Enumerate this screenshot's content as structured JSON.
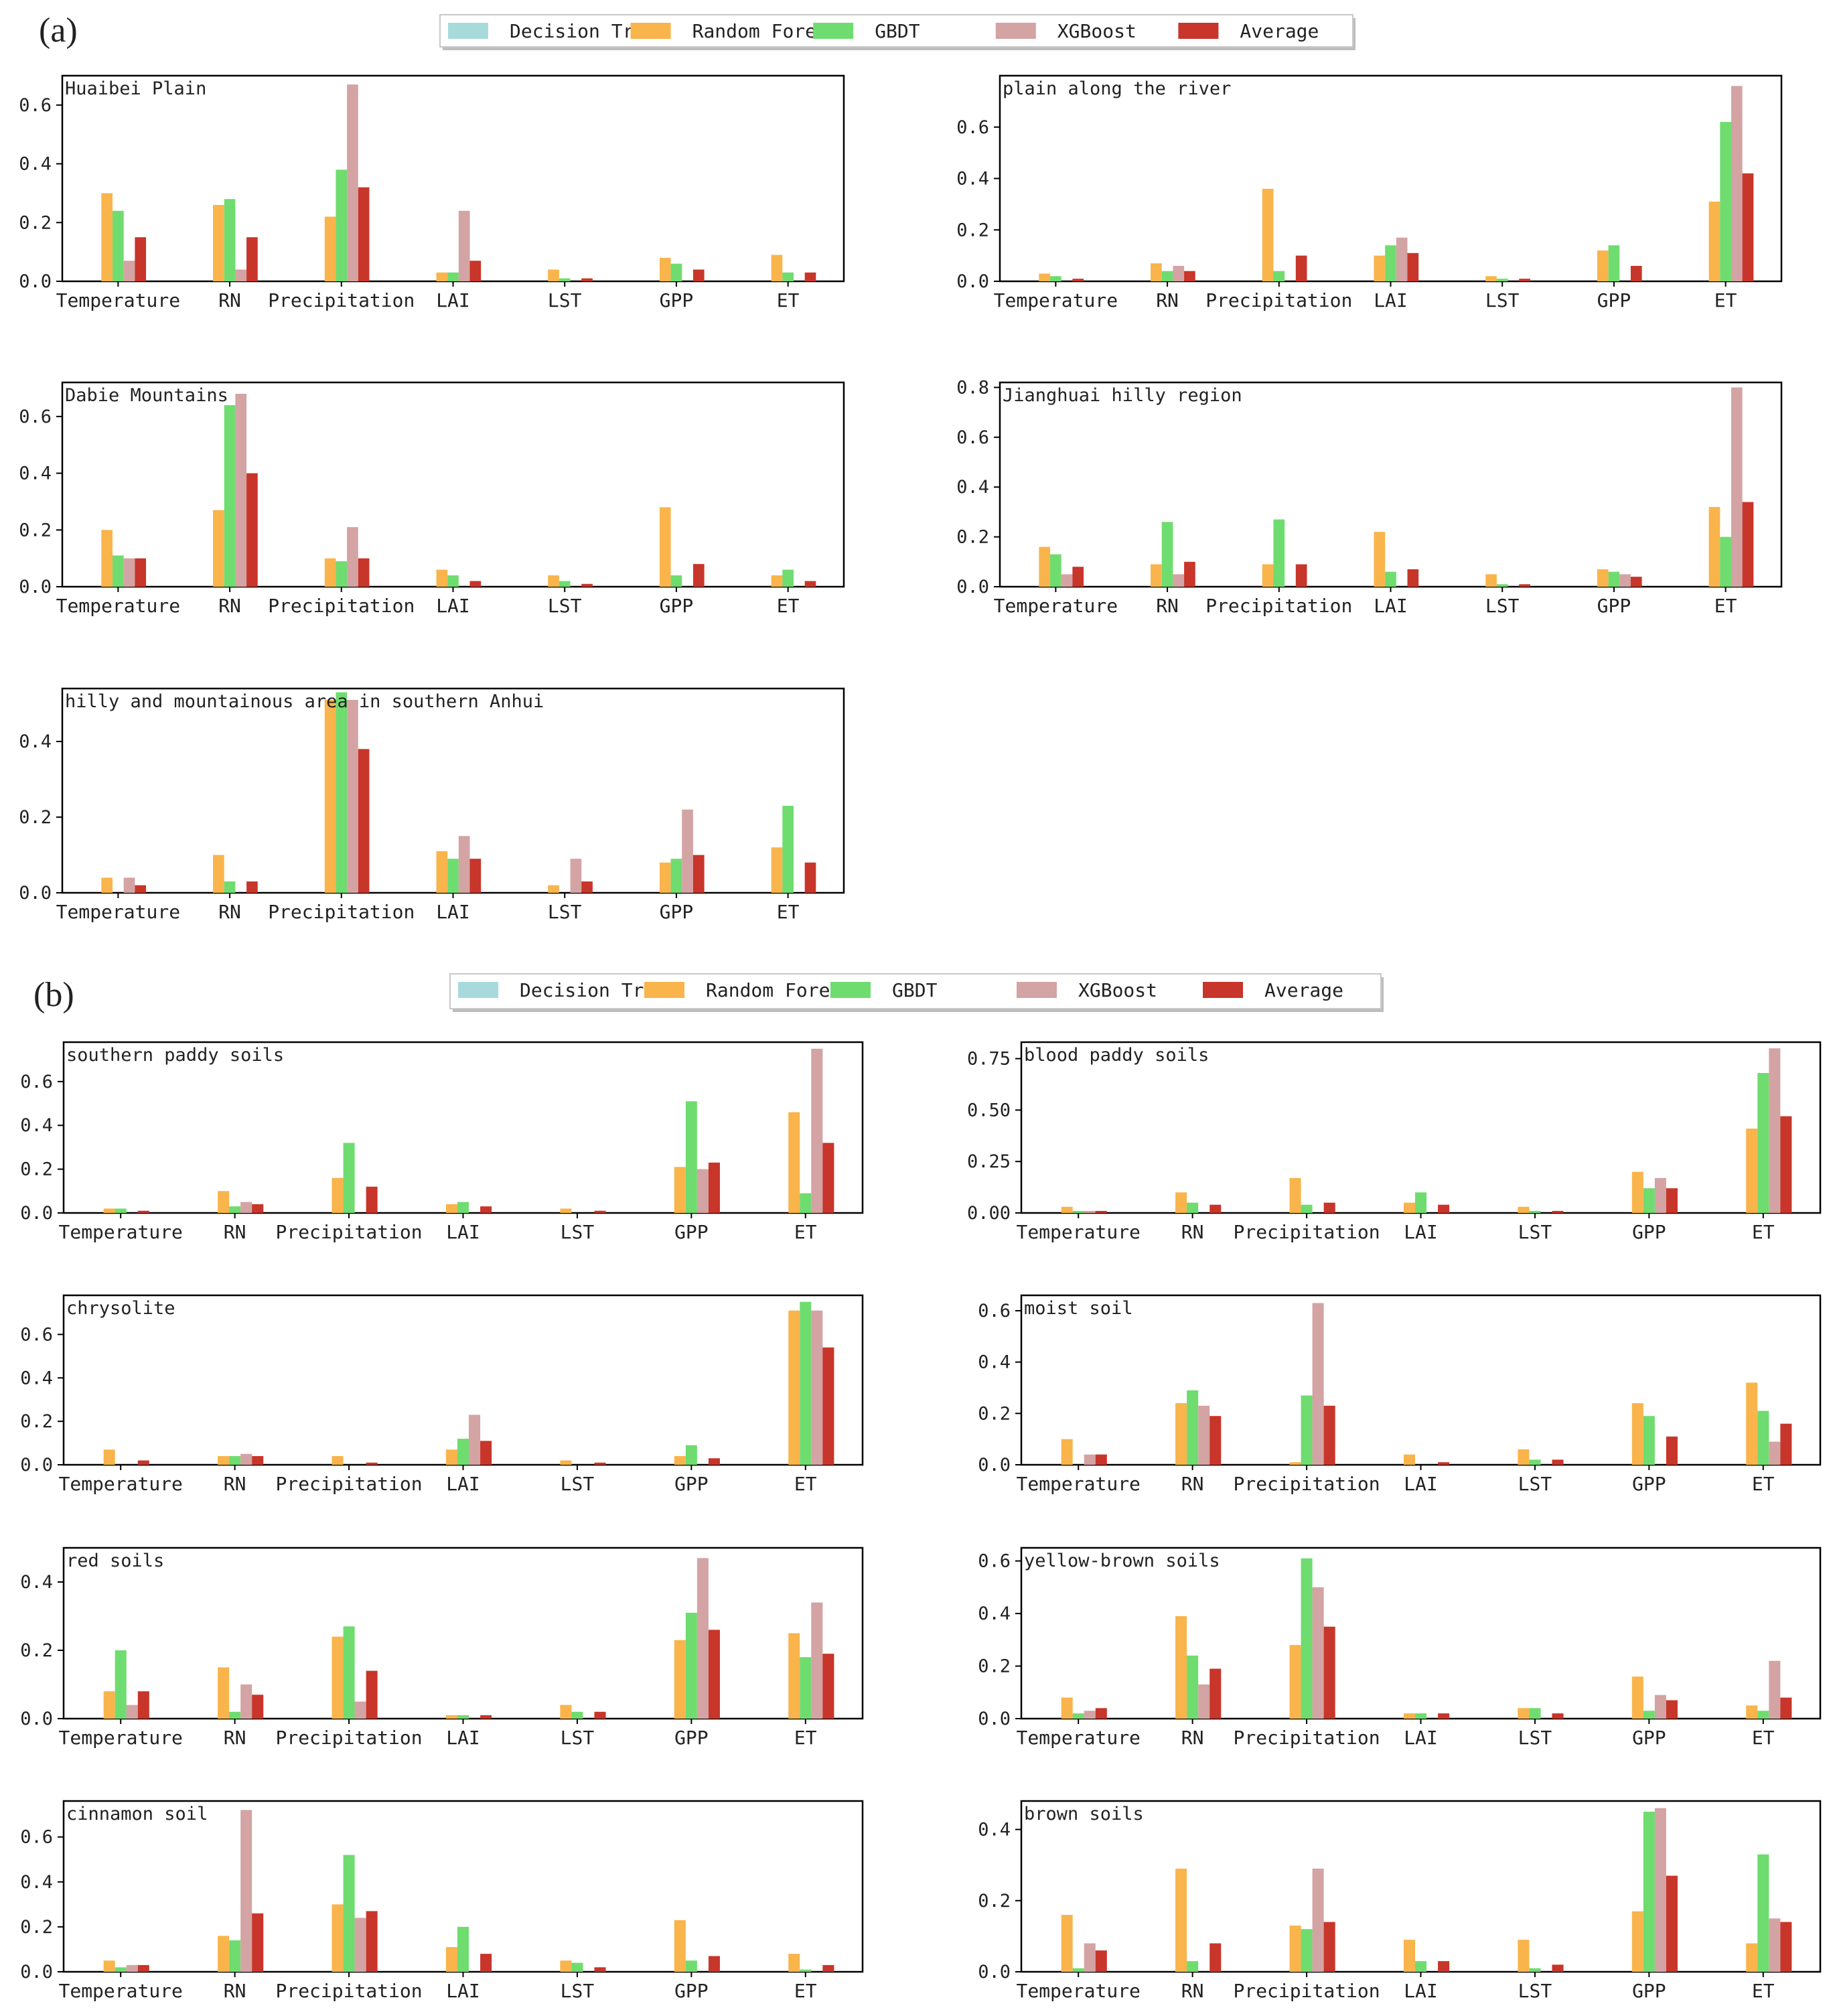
{
  "series_names": [
    "Decision Trees",
    "Random Forest",
    "GBDT",
    "XGBoost",
    "Average"
  ],
  "colors": {
    "decision_trees": "#a8dadc",
    "random_forest": "#f9b44b",
    "gbdt": "#6fdc6f",
    "xgboost": "#d4a3a3",
    "average": "#c8352a"
  },
  "chart_data": [
    {
      "group": "a",
      "type": "bar",
      "title": "Huaibei Plain",
      "categories": [
        "Temperature",
        "RN",
        "Precipitation",
        "LAI",
        "LST",
        "GPP",
        "ET"
      ],
      "yticks": [
        "0.0",
        "0.2",
        "0.4",
        "0.6"
      ],
      "ylim": [
        0,
        0.7
      ],
      "series": [
        {
          "name": "Decision Trees",
          "values": [
            0,
            0,
            0,
            0,
            0,
            0,
            0
          ]
        },
        {
          "name": "Random Forest",
          "values": [
            0.3,
            0.26,
            0.22,
            0.03,
            0.04,
            0.08,
            0.09
          ]
        },
        {
          "name": "GBDT",
          "values": [
            0.24,
            0.28,
            0.38,
            0.03,
            0.01,
            0.06,
            0.03
          ]
        },
        {
          "name": "XGBoost",
          "values": [
            0.07,
            0.04,
            0.67,
            0.24,
            0.0,
            0.0,
            0.0
          ]
        },
        {
          "name": "Average",
          "values": [
            0.15,
            0.15,
            0.32,
            0.07,
            0.01,
            0.04,
            0.03
          ]
        }
      ]
    },
    {
      "group": "a",
      "type": "bar",
      "title": "plain along the river",
      "categories": [
        "Temperature",
        "RN",
        "Precipitation",
        "LAI",
        "LST",
        "GPP",
        "ET"
      ],
      "yticks": [
        "0.0",
        "0.2",
        "0.4",
        "0.6"
      ],
      "ylim": [
        0,
        0.8
      ],
      "series": [
        {
          "name": "Decision Trees",
          "values": [
            0,
            0,
            0,
            0,
            0,
            0,
            0
          ]
        },
        {
          "name": "Random Forest",
          "values": [
            0.03,
            0.07,
            0.36,
            0.1,
            0.02,
            0.12,
            0.31
          ]
        },
        {
          "name": "GBDT",
          "values": [
            0.02,
            0.04,
            0.04,
            0.14,
            0.01,
            0.14,
            0.62
          ]
        },
        {
          "name": "XGBoost",
          "values": [
            0.0,
            0.06,
            0.0,
            0.17,
            0.0,
            0.0,
            0.76
          ]
        },
        {
          "name": "Average",
          "values": [
            0.01,
            0.04,
            0.1,
            0.11,
            0.01,
            0.06,
            0.42
          ]
        }
      ]
    },
    {
      "group": "a",
      "type": "bar",
      "title": "Dabie Mountains",
      "categories": [
        "Temperature",
        "RN",
        "Precipitation",
        "LAI",
        "LST",
        "GPP",
        "ET"
      ],
      "yticks": [
        "0.0",
        "0.2",
        "0.4",
        "0.6"
      ],
      "ylim": [
        0,
        0.72
      ],
      "series": [
        {
          "name": "Decision Trees",
          "values": [
            0,
            0,
            0,
            0,
            0,
            0,
            0
          ]
        },
        {
          "name": "Random Forest",
          "values": [
            0.2,
            0.27,
            0.1,
            0.06,
            0.04,
            0.28,
            0.04
          ]
        },
        {
          "name": "GBDT",
          "values": [
            0.11,
            0.64,
            0.09,
            0.04,
            0.02,
            0.04,
            0.06
          ]
        },
        {
          "name": "XGBoost",
          "values": [
            0.1,
            0.68,
            0.21,
            0.0,
            0.0,
            0.0,
            0.0
          ]
        },
        {
          "name": "Average",
          "values": [
            0.1,
            0.4,
            0.1,
            0.02,
            0.01,
            0.08,
            0.02
          ]
        }
      ]
    },
    {
      "group": "a",
      "type": "bar",
      "title": "Jianghuai hilly region",
      "categories": [
        "Temperature",
        "RN",
        "Precipitation",
        "LAI",
        "LST",
        "GPP",
        "ET"
      ],
      "yticks": [
        "0.0",
        "0.2",
        "0.4",
        "0.6",
        "0.8"
      ],
      "ylim": [
        0,
        0.82
      ],
      "series": [
        {
          "name": "Decision Trees",
          "values": [
            0,
            0,
            0,
            0,
            0,
            0,
            0
          ]
        },
        {
          "name": "Random Forest",
          "values": [
            0.16,
            0.09,
            0.09,
            0.22,
            0.05,
            0.07,
            0.32
          ]
        },
        {
          "name": "GBDT",
          "values": [
            0.13,
            0.26,
            0.27,
            0.06,
            0.01,
            0.06,
            0.2
          ]
        },
        {
          "name": "XGBoost",
          "values": [
            0.05,
            0.05,
            0.0,
            0.0,
            0.0,
            0.05,
            0.8
          ]
        },
        {
          "name": "Average",
          "values": [
            0.08,
            0.1,
            0.09,
            0.07,
            0.01,
            0.04,
            0.34
          ]
        }
      ]
    },
    {
      "group": "a",
      "type": "bar",
      "title": "hilly and mountainous area in southern Anhui",
      "categories": [
        "Temperature",
        "RN",
        "Precipitation",
        "LAI",
        "LST",
        "GPP",
        "ET"
      ],
      "yticks": [
        "0.0",
        "0.2",
        "0.4"
      ],
      "ylim": [
        0,
        0.54
      ],
      "series": [
        {
          "name": "Decision Trees",
          "values": [
            0,
            0,
            0,
            0,
            0,
            0,
            0
          ]
        },
        {
          "name": "Random Forest",
          "values": [
            0.04,
            0.1,
            0.51,
            0.11,
            0.02,
            0.08,
            0.12
          ]
        },
        {
          "name": "GBDT",
          "values": [
            0.0,
            0.03,
            0.53,
            0.09,
            0.0,
            0.09,
            0.23
          ]
        },
        {
          "name": "XGBoost",
          "values": [
            0.04,
            0.0,
            0.51,
            0.15,
            0.09,
            0.22,
            0.0
          ]
        },
        {
          "name": "Average",
          "values": [
            0.02,
            0.03,
            0.38,
            0.09,
            0.03,
            0.1,
            0.08
          ]
        }
      ]
    },
    {
      "group": "b",
      "type": "bar",
      "title": "southern paddy soils",
      "categories": [
        "Temperature",
        "RN",
        "Precipitation",
        "LAI",
        "LST",
        "GPP",
        "ET"
      ],
      "yticks": [
        "0.0",
        "0.2",
        "0.4",
        "0.6"
      ],
      "ylim": [
        0,
        0.78
      ],
      "series": [
        {
          "name": "Decision Trees",
          "values": [
            0,
            0,
            0,
            0,
            0,
            0,
            0
          ]
        },
        {
          "name": "Random Forest",
          "values": [
            0.02,
            0.1,
            0.16,
            0.04,
            0.02,
            0.21,
            0.46
          ]
        },
        {
          "name": "GBDT",
          "values": [
            0.02,
            0.03,
            0.32,
            0.05,
            0.0,
            0.51,
            0.09
          ]
        },
        {
          "name": "XGBoost",
          "values": [
            0.0,
            0.05,
            0.0,
            0.0,
            0.0,
            0.2,
            0.75
          ]
        },
        {
          "name": "Average",
          "values": [
            0.01,
            0.04,
            0.12,
            0.03,
            0.01,
            0.23,
            0.32
          ]
        }
      ]
    },
    {
      "group": "b",
      "type": "bar",
      "title": "blood paddy soils",
      "categories": [
        "Temperature",
        "RN",
        "Precipitation",
        "LAI",
        "LST",
        "GPP",
        "ET"
      ],
      "yticks": [
        "0.00",
        "0.25",
        "0.50",
        "0.75"
      ],
      "ylim": [
        0,
        0.83
      ],
      "series": [
        {
          "name": "Decision Trees",
          "values": [
            0,
            0,
            0,
            0,
            0,
            0,
            0
          ]
        },
        {
          "name": "Random Forest",
          "values": [
            0.03,
            0.1,
            0.17,
            0.05,
            0.03,
            0.2,
            0.41
          ]
        },
        {
          "name": "GBDT",
          "values": [
            0.01,
            0.05,
            0.04,
            0.1,
            0.01,
            0.12,
            0.68
          ]
        },
        {
          "name": "XGBoost",
          "values": [
            0.01,
            0.0,
            0.0,
            0.0,
            0.0,
            0.17,
            0.8
          ]
        },
        {
          "name": "Average",
          "values": [
            0.01,
            0.04,
            0.05,
            0.04,
            0.01,
            0.12,
            0.47
          ]
        }
      ]
    },
    {
      "group": "b",
      "type": "bar",
      "title": "chrysolite",
      "categories": [
        "Temperature",
        "RN",
        "Precipitation",
        "LAI",
        "LST",
        "GPP",
        "ET"
      ],
      "yticks": [
        "0.0",
        "0.2",
        "0.4",
        "0.6"
      ],
      "ylim": [
        0,
        0.78
      ],
      "series": [
        {
          "name": "Decision Trees",
          "values": [
            0,
            0,
            0,
            0,
            0,
            0,
            0
          ]
        },
        {
          "name": "Random Forest",
          "values": [
            0.07,
            0.04,
            0.04,
            0.07,
            0.02,
            0.04,
            0.71
          ]
        },
        {
          "name": "GBDT",
          "values": [
            0.0,
            0.04,
            0.0,
            0.12,
            0.0,
            0.09,
            0.75
          ]
        },
        {
          "name": "XGBoost",
          "values": [
            0.0,
            0.05,
            0.0,
            0.23,
            0.0,
            0.0,
            0.71
          ]
        },
        {
          "name": "Average",
          "values": [
            0.02,
            0.04,
            0.01,
            0.11,
            0.01,
            0.03,
            0.54
          ]
        }
      ]
    },
    {
      "group": "b",
      "type": "bar",
      "title": "moist soil",
      "categories": [
        "Temperature",
        "RN",
        "Precipitation",
        "LAI",
        "LST",
        "GPP",
        "ET"
      ],
      "yticks": [
        "0.0",
        "0.2",
        "0.4",
        "0.6"
      ],
      "ylim": [
        0,
        0.66
      ],
      "series": [
        {
          "name": "Decision Trees",
          "values": [
            0,
            0,
            0,
            0,
            0,
            0,
            0
          ]
        },
        {
          "name": "Random Forest",
          "values": [
            0.1,
            0.24,
            0.01,
            0.04,
            0.06,
            0.24,
            0.32
          ]
        },
        {
          "name": "GBDT",
          "values": [
            0.0,
            0.29,
            0.27,
            0.0,
            0.02,
            0.19,
            0.21
          ]
        },
        {
          "name": "XGBoost",
          "values": [
            0.04,
            0.23,
            0.63,
            0.0,
            0.0,
            0.0,
            0.09
          ]
        },
        {
          "name": "Average",
          "values": [
            0.04,
            0.19,
            0.23,
            0.01,
            0.02,
            0.11,
            0.16
          ]
        }
      ]
    },
    {
      "group": "b",
      "type": "bar",
      "title": "red soils",
      "categories": [
        "Temperature",
        "RN",
        "Precipitation",
        "LAI",
        "LST",
        "GPP",
        "ET"
      ],
      "yticks": [
        "0.0",
        "0.2",
        "0.4"
      ],
      "ylim": [
        0,
        0.5
      ],
      "series": [
        {
          "name": "Decision Trees",
          "values": [
            0,
            0,
            0,
            0,
            0,
            0,
            0
          ]
        },
        {
          "name": "Random Forest",
          "values": [
            0.08,
            0.15,
            0.24,
            0.01,
            0.04,
            0.23,
            0.25
          ]
        },
        {
          "name": "GBDT",
          "values": [
            0.2,
            0.02,
            0.27,
            0.01,
            0.02,
            0.31,
            0.18
          ]
        },
        {
          "name": "XGBoost",
          "values": [
            0.04,
            0.1,
            0.05,
            0.0,
            0.0,
            0.47,
            0.34
          ]
        },
        {
          "name": "Average",
          "values": [
            0.08,
            0.07,
            0.14,
            0.01,
            0.02,
            0.26,
            0.19
          ]
        }
      ]
    },
    {
      "group": "b",
      "type": "bar",
      "title": "yellow-brown soils",
      "categories": [
        "Temperature",
        "RN",
        "Precipitation",
        "LAI",
        "LST",
        "GPP",
        "ET"
      ],
      "yticks": [
        "0.0",
        "0.2",
        "0.4",
        "0.6"
      ],
      "ylim": [
        0,
        0.65
      ],
      "series": [
        {
          "name": "Decision Trees",
          "values": [
            0,
            0,
            0,
            0,
            0,
            0,
            0
          ]
        },
        {
          "name": "Random Forest",
          "values": [
            0.08,
            0.39,
            0.28,
            0.02,
            0.04,
            0.16,
            0.05
          ]
        },
        {
          "name": "GBDT",
          "values": [
            0.02,
            0.24,
            0.61,
            0.02,
            0.04,
            0.03,
            0.03
          ]
        },
        {
          "name": "XGBoost",
          "values": [
            0.03,
            0.13,
            0.5,
            0.0,
            0.0,
            0.09,
            0.22
          ]
        },
        {
          "name": "Average",
          "values": [
            0.04,
            0.19,
            0.35,
            0.02,
            0.02,
            0.07,
            0.08
          ]
        }
      ]
    },
    {
      "group": "b",
      "type": "bar",
      "title": "cinnamon soil",
      "categories": [
        "Temperature",
        "RN",
        "Precipitation",
        "LAI",
        "LST",
        "GPP",
        "ET"
      ],
      "yticks": [
        "0.0",
        "0.2",
        "0.4",
        "0.6"
      ],
      "ylim": [
        0,
        0.76
      ],
      "series": [
        {
          "name": "Decision Trees",
          "values": [
            0,
            0,
            0,
            0,
            0,
            0,
            0
          ]
        },
        {
          "name": "Random Forest",
          "values": [
            0.05,
            0.16,
            0.3,
            0.11,
            0.05,
            0.23,
            0.08
          ]
        },
        {
          "name": "GBDT",
          "values": [
            0.02,
            0.14,
            0.52,
            0.2,
            0.04,
            0.05,
            0.01
          ]
        },
        {
          "name": "XGBoost",
          "values": [
            0.03,
            0.72,
            0.24,
            0.0,
            0.0,
            0.0,
            0.0
          ]
        },
        {
          "name": "Average",
          "values": [
            0.03,
            0.26,
            0.27,
            0.08,
            0.02,
            0.07,
            0.03
          ]
        }
      ]
    },
    {
      "group": "b",
      "type": "bar",
      "title": "brown soils",
      "categories": [
        "Temperature",
        "RN",
        "Precipitation",
        "LAI",
        "LST",
        "GPP",
        "ET"
      ],
      "yticks": [
        "0.0",
        "0.2",
        "0.4"
      ],
      "ylim": [
        0,
        0.48
      ],
      "series": [
        {
          "name": "Decision Trees",
          "values": [
            0,
            0,
            0,
            0,
            0,
            0,
            0
          ]
        },
        {
          "name": "Random Forest",
          "values": [
            0.16,
            0.29,
            0.13,
            0.09,
            0.09,
            0.17,
            0.08
          ]
        },
        {
          "name": "GBDT",
          "values": [
            0.01,
            0.03,
            0.12,
            0.03,
            0.01,
            0.45,
            0.33
          ]
        },
        {
          "name": "XGBoost",
          "values": [
            0.08,
            0.0,
            0.29,
            0.0,
            0.0,
            0.46,
            0.15
          ]
        },
        {
          "name": "Average",
          "values": [
            0.06,
            0.08,
            0.14,
            0.03,
            0.02,
            0.27,
            0.14
          ]
        }
      ]
    }
  ],
  "section_labels": {
    "a": "(a)",
    "b": "(b)"
  }
}
